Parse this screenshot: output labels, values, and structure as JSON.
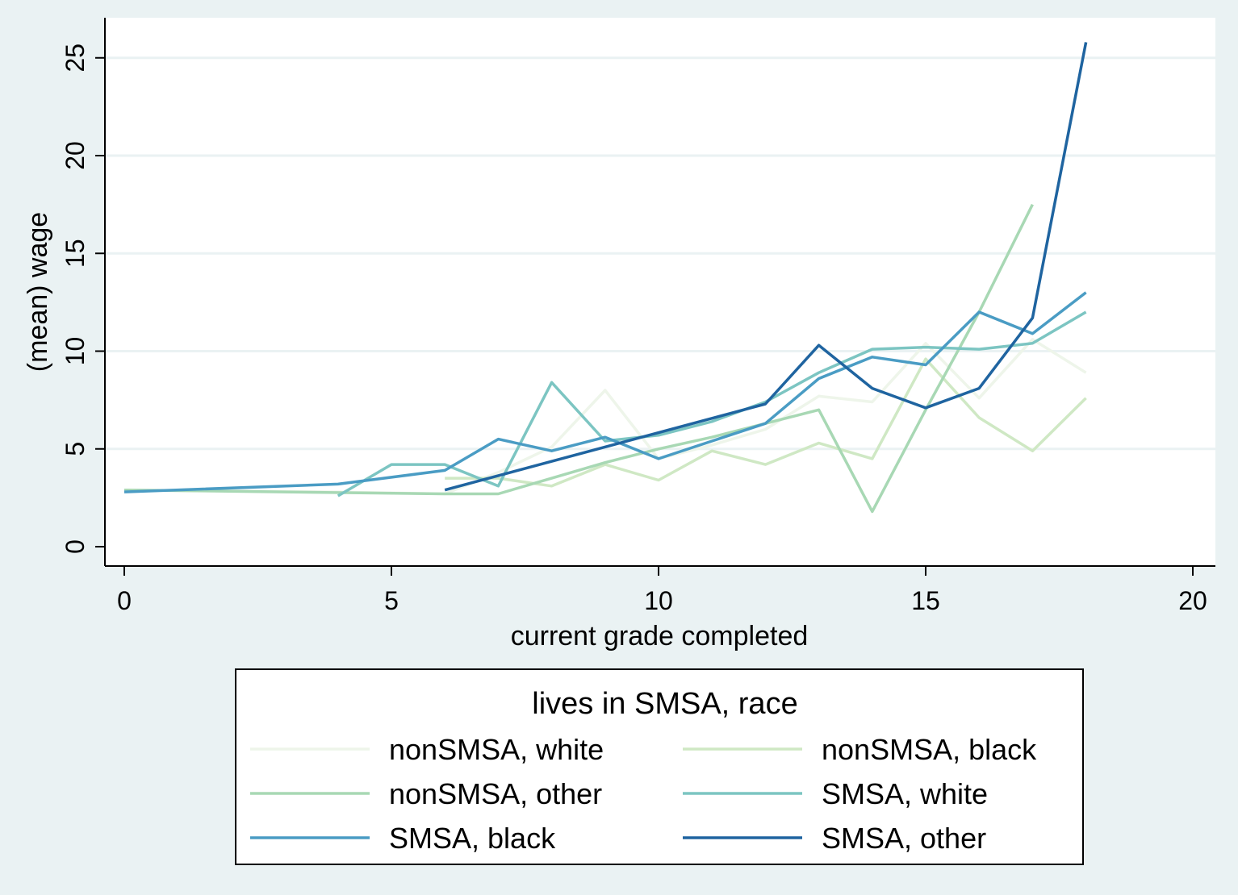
{
  "chart_data": {
    "type": "line",
    "title": "",
    "xlabel": "current grade completed",
    "ylabel": "(mean) wage",
    "xlim": [
      0,
      20
    ],
    "ylim": [
      0,
      25
    ],
    "xticks": [
      0,
      5,
      10,
      15,
      20
    ],
    "yticks": [
      0,
      5,
      10,
      15,
      20,
      25
    ],
    "grid": "horizontal",
    "legend": {
      "title": "lives in SMSA, race",
      "placement": "bottom",
      "columns": 2
    },
    "series": [
      {
        "name": "nonSMSA, white",
        "color": "#eef5ea",
        "x": [
          0,
          4,
          6,
          7,
          8,
          9,
          10,
          11,
          12,
          13,
          14,
          15,
          16,
          17,
          18
        ],
        "y": [
          2.9,
          2.8,
          2.7,
          3.8,
          5.1,
          8.0,
          4.5,
          5.2,
          6.0,
          7.7,
          7.4,
          10.4,
          7.6,
          10.6,
          8.9
        ]
      },
      {
        "name": "nonSMSA, black",
        "color": "#cfe8c4",
        "x": [
          6,
          7,
          8,
          9,
          10,
          11,
          12,
          13,
          14,
          15,
          16,
          17,
          18
        ],
        "y": [
          3.5,
          3.5,
          3.1,
          4.2,
          3.4,
          4.9,
          4.2,
          5.3,
          4.5,
          9.6,
          6.6,
          4.9,
          7.6
        ]
      },
      {
        "name": "nonSMSA, other",
        "color": "#a8d8b4",
        "x": [
          0,
          6,
          7,
          8,
          9,
          10,
          11,
          12,
          13,
          14,
          15,
          16,
          17
        ],
        "y": [
          2.9,
          2.7,
          2.7,
          3.5,
          4.3,
          5.0,
          5.6,
          6.3,
          7.0,
          1.8,
          7.0,
          12.0,
          17.5
        ]
      },
      {
        "name": "SMSA, white",
        "color": "#7cc5c2",
        "x": [
          4,
          5,
          6,
          7,
          8,
          9,
          10,
          11,
          12,
          13,
          14,
          15,
          16,
          17,
          18
        ],
        "y": [
          2.6,
          4.2,
          4.2,
          3.1,
          8.4,
          5.4,
          5.7,
          6.4,
          7.4,
          8.9,
          10.1,
          10.2,
          10.1,
          10.4,
          12.0
        ]
      },
      {
        "name": "SMSA, black",
        "color": "#4a9cc4",
        "x": [
          0,
          4,
          6,
          7,
          8,
          9,
          10,
          11,
          12,
          13,
          14,
          15,
          16,
          17,
          18
        ],
        "y": [
          2.8,
          3.2,
          3.9,
          5.5,
          4.9,
          5.6,
          4.5,
          5.4,
          6.3,
          8.6,
          9.7,
          9.3,
          12.0,
          10.9,
          13.0
        ]
      },
      {
        "name": "SMSA, other",
        "color": "#1f64a0",
        "x": [
          6,
          12,
          13,
          14,
          15,
          16,
          17,
          18
        ],
        "y": [
          2.9,
          7.3,
          10.3,
          8.1,
          7.1,
          8.1,
          11.7,
          25.8
        ]
      }
    ]
  }
}
